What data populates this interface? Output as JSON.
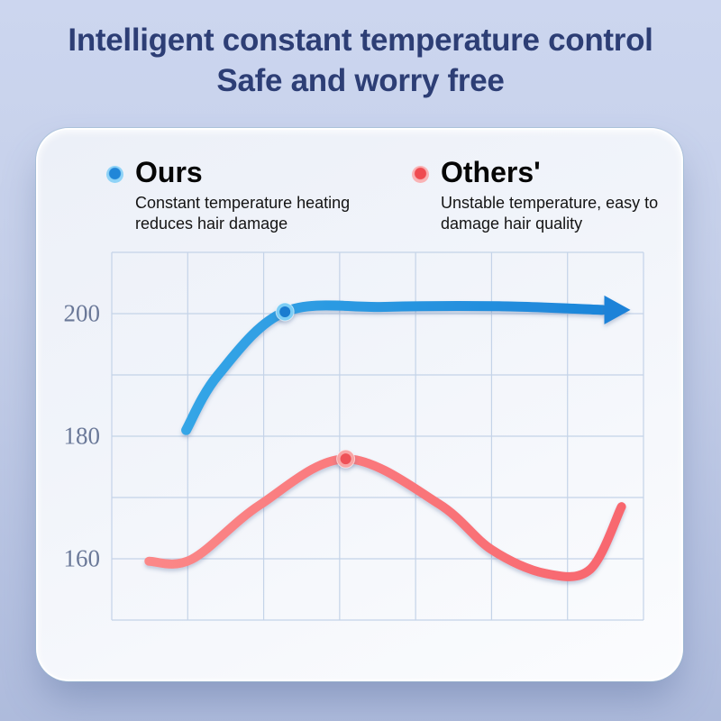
{
  "header": {
    "title_line1": "Intelligent constant temperature control",
    "title_line2": "Safe and worry free",
    "color": "#2d3e75"
  },
  "legend": {
    "ours": {
      "label": "Ours",
      "desc": [
        "Constant temperature heating",
        "reduces hair damage"
      ],
      "dot_inner": "#2186d8",
      "dot_outer": "#8fd3f7"
    },
    "others": {
      "label": "Others'",
      "desc": [
        "Unstable temperature, easy to",
        "damage hair quality"
      ],
      "dot_inner": "#ef4b50",
      "dot_outer": "#f9b3b5"
    }
  },
  "chart_data": {
    "type": "line",
    "title": "",
    "xlabel": "",
    "ylabel": "",
    "x_axis": {
      "tick_labels": [],
      "note": "no x labels shown; x given in grid-column units 0-7"
    },
    "y_axis": {
      "ticks": [
        200,
        180,
        160
      ],
      "tick_color": "#6a7898"
    },
    "grid": {
      "rows": 6,
      "cols": 7,
      "color": "#c4d3e8",
      "border": true
    },
    "legend_position": "top",
    "series": [
      {
        "name": "Ours",
        "color_start": "#38abe9",
        "color_end": "#1b82d8",
        "arrow_end": true,
        "marker": {
          "x": 2.28,
          "y": 200.3,
          "outer": "#7ccdf5",
          "inner": "#1a7cd0"
        },
        "points": [
          {
            "x": 0.98,
            "y": 181.0
          },
          {
            "x": 1.4,
            "y": 190.0
          },
          {
            "x": 2.28,
            "y": 200.3
          },
          {
            "x": 3.6,
            "y": 201.1
          },
          {
            "x": 5.1,
            "y": 201.2
          },
          {
            "x": 6.46,
            "y": 200.6
          }
        ]
      },
      {
        "name": "Others'",
        "color_start": "#fb8a8a",
        "color_end": "#f8656d",
        "arrow_end": false,
        "marker": {
          "x": 3.08,
          "y": 176.3,
          "outer": "#f8a6a6",
          "inner": "#ee5257"
        },
        "points": [
          {
            "x": 0.49,
            "y": 159.6
          },
          {
            "x": 1.05,
            "y": 159.9
          },
          {
            "x": 1.95,
            "y": 168.8
          },
          {
            "x": 3.08,
            "y": 176.3
          },
          {
            "x": 4.3,
            "y": 169.0
          },
          {
            "x": 5.0,
            "y": 161.5
          },
          {
            "x": 5.71,
            "y": 157.6
          },
          {
            "x": 6.3,
            "y": 158.3
          },
          {
            "x": 6.71,
            "y": 168.5
          }
        ]
      }
    ]
  }
}
